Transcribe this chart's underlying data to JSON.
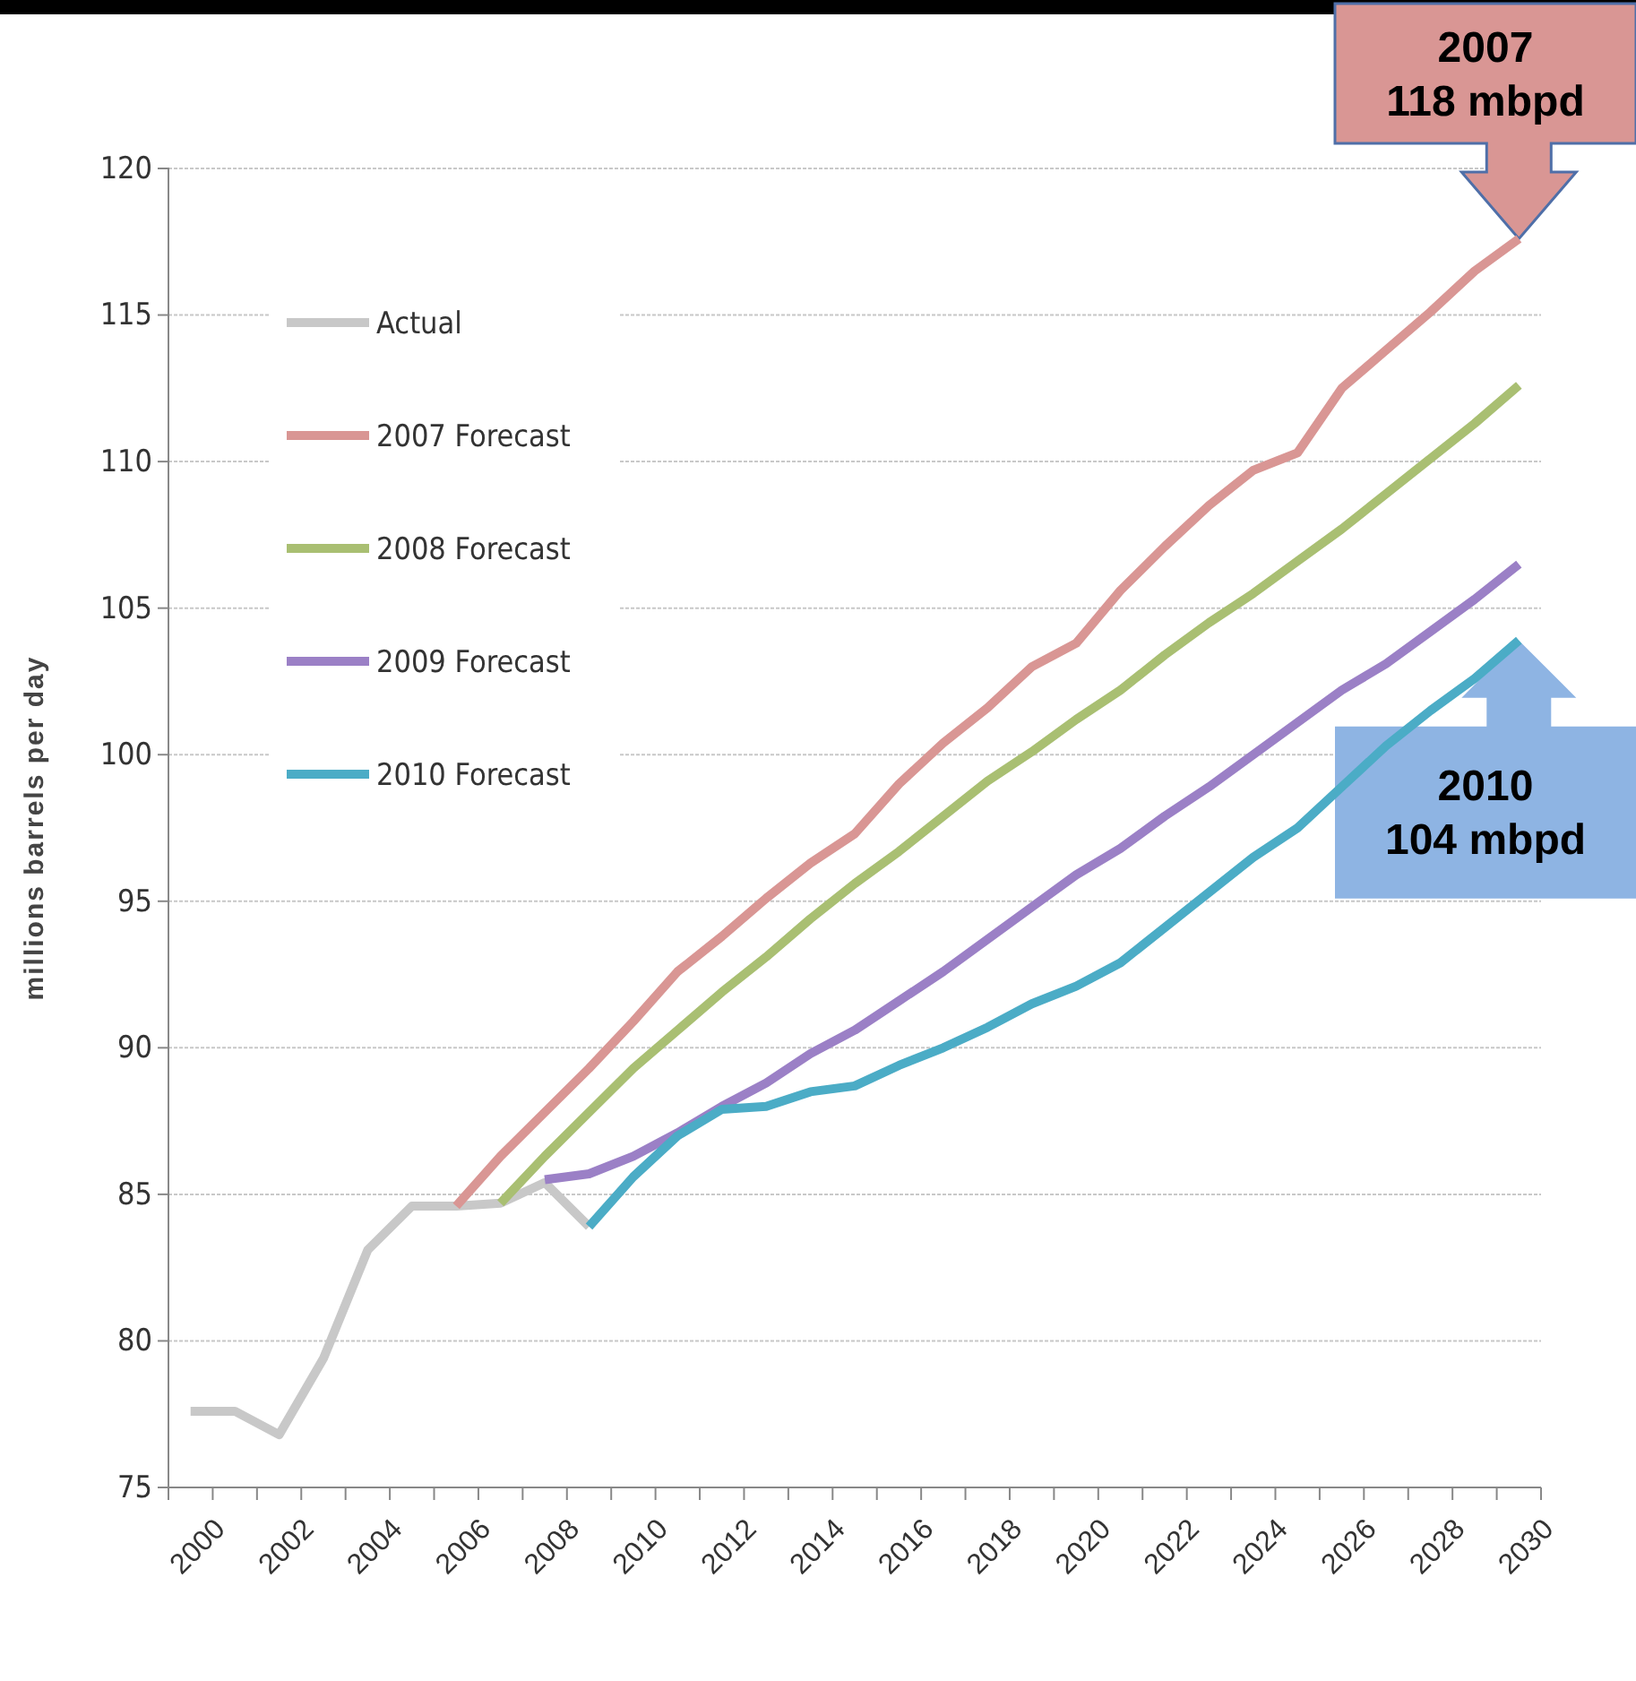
{
  "chart_data": {
    "type": "line",
    "ylabel": "millions barrels per day",
    "categories": [
      "2000",
      null,
      "2002",
      null,
      "2004",
      null,
      "2006",
      null,
      "2008",
      null,
      "2010",
      null,
      "2012",
      null,
      "2014",
      null,
      "2016",
      null,
      "2018",
      null,
      "2020",
      null,
      "2022",
      null,
      "2024",
      null,
      "2026",
      null,
      "2028",
      null,
      "2030"
    ],
    "series": [
      {
        "name": "Actual",
        "color": "#c8c8c8",
        "values": [
          77.6,
          77.6,
          76.8,
          79.4,
          83.1,
          84.6,
          84.6,
          84.7,
          85.4,
          83.9,
          null,
          null,
          null,
          null,
          null,
          null,
          null,
          null,
          null,
          null,
          null,
          null,
          null,
          null,
          null,
          null,
          null,
          null,
          null,
          null,
          null
        ]
      },
      {
        "name": "2007 Forecast",
        "color": "#d99694",
        "values": [
          null,
          null,
          null,
          null,
          null,
          null,
          84.6,
          86.3,
          87.8,
          89.3,
          90.9,
          92.6,
          93.8,
          95.1,
          96.3,
          97.3,
          99.0,
          100.4,
          101.6,
          103.0,
          103.8,
          105.6,
          107.1,
          108.5,
          109.7,
          110.3,
          112.5,
          113.8,
          115.1,
          116.5,
          117.6
        ]
      },
      {
        "name": "2008 Forecast",
        "color": "#a9bf72",
        "values": [
          null,
          null,
          null,
          null,
          null,
          null,
          null,
          84.7,
          86.3,
          87.8,
          89.3,
          90.6,
          91.9,
          93.1,
          94.4,
          95.6,
          96.7,
          97.9,
          99.1,
          100.1,
          101.2,
          102.2,
          103.4,
          104.5,
          105.5,
          106.6,
          107.7,
          108.9,
          110.1,
          111.3,
          112.6
        ]
      },
      {
        "name": "2009 Forecast",
        "color": "#9b80c6",
        "values": [
          null,
          null,
          null,
          null,
          null,
          null,
          null,
          null,
          85.5,
          85.7,
          86.3,
          87.1,
          88.0,
          88.8,
          89.8,
          90.6,
          91.6,
          92.6,
          93.7,
          94.8,
          95.9,
          96.8,
          97.9,
          98.9,
          100.0,
          101.1,
          102.2,
          103.1,
          104.2,
          105.3,
          106.5
        ]
      },
      {
        "name": "2010 Forecast",
        "color": "#4bacc6",
        "values": [
          null,
          null,
          null,
          null,
          null,
          null,
          null,
          null,
          null,
          83.9,
          85.6,
          87.0,
          87.9,
          88.0,
          88.5,
          88.7,
          89.4,
          90.0,
          90.7,
          91.5,
          92.1,
          92.9,
          94.1,
          95.3,
          96.5,
          97.5,
          98.9,
          100.3,
          101.5,
          102.6,
          103.9
        ]
      }
    ],
    "ylim": [
      75,
      120
    ],
    "yticks": [
      75,
      80,
      85,
      90,
      95,
      100,
      105,
      110,
      115,
      120
    ],
    "grid": "y",
    "legend": "top left",
    "marker": "none",
    "line_style": "solid",
    "annotations": [
      {
        "text": "2007\n118 mbpd",
        "x": "2030",
        "y": 117.6
      },
      {
        "text": "2010\n104 mbpd",
        "x": "2030",
        "y": 103.9
      }
    ]
  }
}
